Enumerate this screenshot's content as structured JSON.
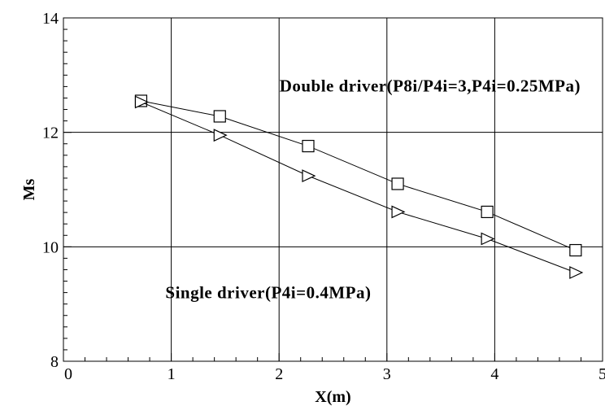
{
  "chart_data": {
    "type": "line",
    "xlabel": "X(m)",
    "ylabel": "Ms",
    "xlim": [
      0,
      5
    ],
    "ylim": [
      8,
      14
    ],
    "xticks": [
      0,
      1,
      2,
      3,
      4,
      5
    ],
    "yticks": [
      8,
      10,
      12,
      14
    ],
    "xtick_labels": [
      "0",
      "1",
      "2",
      "3",
      "4",
      "5"
    ],
    "ytick_labels": [
      "8",
      "10",
      "12",
      "14"
    ],
    "grid": true,
    "series": [
      {
        "marker": "square",
        "x": [
          0.72,
          1.45,
          2.27,
          3.1,
          3.93,
          4.75
        ],
        "y": [
          12.55,
          12.28,
          11.76,
          11.1,
          10.61,
          9.94
        ]
      },
      {
        "marker": "triangle-right",
        "x": [
          0.72,
          1.45,
          2.27,
          3.1,
          3.93,
          4.75
        ],
        "y": [
          12.53,
          11.95,
          11.24,
          10.61,
          10.14,
          9.55
        ]
      }
    ],
    "annotations": [
      {
        "text": "Double driver(P8i/P4i=3,P4i=0.25MPa)",
        "x": 3.4,
        "y": 12.71
      },
      {
        "text": "Single driver(P4i=0.4MPa)",
        "x": 1.9,
        "y": 9.1
      }
    ],
    "line_color": "#000000",
    "grid_color": "#000000"
  }
}
